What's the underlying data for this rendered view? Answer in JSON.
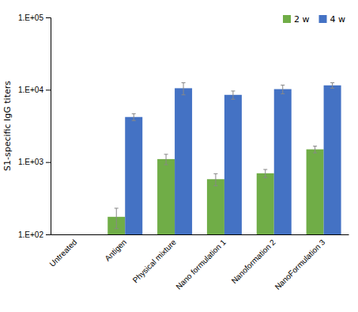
{
  "chart_data": {
    "type": "bar",
    "categories": [
      "Untreated",
      "Antigen",
      "Physical mixture",
      "Nano formulation 1",
      "Nanoformation 2",
      "NanoFormulation 3"
    ],
    "series": [
      {
        "name": "2 w",
        "color": "#70ad47",
        "values": [
          null,
          175,
          1100,
          580,
          700,
          1500
        ],
        "errors": [
          null,
          55,
          180,
          110,
          90,
          160
        ]
      },
      {
        "name": "4 w",
        "color": "#4472c4",
        "values": [
          null,
          4200,
          10500,
          8500,
          10200,
          11500
        ],
        "errors": [
          null,
          450,
          2000,
          1100,
          1400,
          1000
        ]
      }
    ],
    "ylabel": "S1-specific IgG titers",
    "ylim": [
      100,
      100000
    ],
    "yticks": [
      {
        "value": 100,
        "label": "1.E+02"
      },
      {
        "value": 1000,
        "label": "1.E+03"
      },
      {
        "value": 10000,
        "label": "1.E+04"
      },
      {
        "value": 100000,
        "label": "1.E+05"
      }
    ],
    "log": "y",
    "legend": "upper right",
    "grid": false
  }
}
